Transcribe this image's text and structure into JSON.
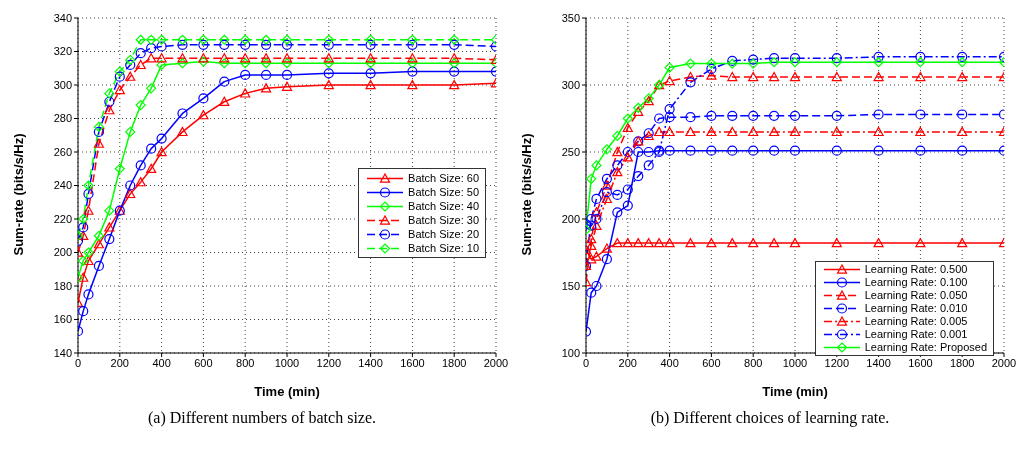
{
  "chart_data": [
    {
      "type": "line",
      "title": "(a) Different numbers of batch size.",
      "xlabel": "Time (min)",
      "ylabel": "Sum-rate (bits/s/Hz)",
      "x": [
        0,
        25,
        50,
        100,
        150,
        200,
        250,
        300,
        350,
        400,
        500,
        600,
        700,
        800,
        900,
        1000,
        1200,
        1400,
        1600,
        1800,
        2000
      ],
      "xlim": [
        0,
        2000
      ],
      "xticks": [
        0,
        200,
        400,
        600,
        800,
        1000,
        1200,
        1400,
        1600,
        1800,
        2000
      ],
      "ylim": [
        140,
        340
      ],
      "yticks": [
        140,
        160,
        180,
        200,
        220,
        240,
        260,
        280,
        300,
        320,
        340
      ],
      "grid": true,
      "legend": "right",
      "series": [
        {
          "name": "Batch Size: 60",
          "color": "#ff0000",
          "marker": "triangle",
          "line_style": "solid",
          "values": [
            170,
            185,
            195,
            205,
            215,
            225,
            235,
            242,
            250,
            260,
            272,
            282,
            290,
            295,
            298,
            299,
            300,
            300,
            300,
            300,
            301
          ]
        },
        {
          "name": "Batch Size: 50",
          "color": "#0000ff",
          "marker": "circle",
          "line_style": "solid",
          "values": [
            153,
            165,
            175,
            192,
            208,
            225,
            240,
            252,
            262,
            268,
            283,
            292,
            302,
            306,
            306,
            306,
            307,
            307,
            308,
            308,
            308
          ]
        },
        {
          "name": "Batch Size: 40",
          "color": "#00ff00",
          "marker": "diamond",
          "line_style": "solid",
          "values": [
            185,
            195,
            200,
            210,
            225,
            250,
            272,
            288,
            298,
            312,
            313,
            314,
            313,
            313,
            313,
            313,
            313,
            313,
            313,
            313,
            313
          ]
        },
        {
          "name": "Batch Size: 30",
          "color": "#ff0000",
          "marker": "triangle",
          "line_style": "dashed",
          "values": [
            200,
            210,
            225,
            265,
            285,
            297,
            305,
            312,
            316,
            316,
            316,
            316,
            316,
            316,
            316,
            316,
            316,
            316,
            316,
            316,
            315
          ]
        },
        {
          "name": "Batch Size: 20",
          "color": "#0000ff",
          "marker": "circle",
          "line_style": "dashed",
          "values": [
            207,
            215,
            235,
            272,
            290,
            305,
            312,
            319,
            322,
            323,
            324,
            324,
            324,
            324,
            324,
            324,
            324,
            324,
            324,
            324,
            323
          ]
        },
        {
          "name": "Batch Size: 10",
          "color": "#00ff00",
          "marker": "diamond",
          "line_style": "dashed",
          "values": [
            210,
            220,
            240,
            275,
            295,
            308,
            315,
            327,
            327,
            327,
            327,
            327,
            327,
            327,
            327,
            327,
            327,
            327,
            327,
            327,
            327
          ]
        }
      ]
    },
    {
      "type": "line",
      "title": "(b) Different choices of learning rate.",
      "xlabel": "Time (min)",
      "ylabel": "Sum-rate (bits/s/Hz)",
      "x": [
        0,
        25,
        50,
        100,
        150,
        200,
        250,
        300,
        350,
        400,
        500,
        600,
        700,
        800,
        900,
        1000,
        1200,
        1400,
        1600,
        1800,
        2000
      ],
      "xlim": [
        0,
        2000
      ],
      "xticks": [
        0,
        200,
        400,
        600,
        800,
        1000,
        1200,
        1400,
        1600,
        1800,
        2000
      ],
      "ylim": [
        100,
        350
      ],
      "yticks": [
        100,
        150,
        200,
        250,
        300,
        350
      ],
      "grid": true,
      "legend": "bottom right",
      "series": [
        {
          "name": "Learning Rate: 0.500",
          "color": "#ff0000",
          "marker": "triangle",
          "line_style": "solid",
          "values": [
            177,
            170,
            172,
            178,
            182,
            182,
            182,
            182,
            182,
            182,
            182,
            182,
            182,
            182,
            182,
            182,
            182,
            182,
            182,
            182,
            182
          ]
        },
        {
          "name": "Learning Rate: 0.100",
          "color": "#0000ff",
          "marker": "circle",
          "line_style": "solid",
          "values": [
            116,
            145,
            150,
            170,
            205,
            210,
            250,
            250,
            251,
            251,
            251,
            251,
            251,
            251,
            251,
            251,
            251,
            251,
            251,
            251,
            251
          ]
        },
        {
          "name": "Learning Rate: 0.050",
          "color": "#ff0000",
          "marker": "triangle",
          "line_style": "dashed",
          "values": [
            153,
            185,
            205,
            225,
            250,
            268,
            280,
            288,
            300,
            303,
            306,
            307,
            306,
            306,
            306,
            306,
            306,
            306,
            306,
            306,
            306
          ]
        },
        {
          "name": "Learning Rate: 0.010",
          "color": "#0000ff",
          "marker": "circle",
          "line_style": "dashed",
          "values": [
            165,
            200,
            215,
            230,
            240,
            250,
            258,
            264,
            275,
            276,
            276,
            277,
            277,
            277,
            277,
            277,
            277,
            278,
            278,
            278,
            278
          ]
        },
        {
          "name": "Learning Rate: 0.005",
          "color": "#ff0000",
          "marker": "triangle",
          "line_style": "dashdot",
          "values": [
            165,
            180,
            195,
            215,
            235,
            246,
            258,
            262,
            265,
            265,
            265,
            265,
            265,
            265,
            265,
            265,
            265,
            265,
            265,
            265,
            265
          ]
        },
        {
          "name": "Learning Rate: 0.001",
          "color": "#0000ff",
          "marker": "circle",
          "line_style": "dashdot",
          "values": [
            196,
            195,
            200,
            220,
            218,
            222,
            232,
            240,
            250,
            282,
            302,
            312,
            318,
            319,
            320,
            320,
            320,
            321,
            321,
            321,
            321
          ]
        },
        {
          "name": "Learning Rate: Proposed",
          "color": "#00ff00",
          "marker": "diamond",
          "line_style": "solid",
          "values": [
            192,
            230,
            240,
            252,
            262,
            275,
            283,
            290,
            300,
            313,
            316,
            316,
            316,
            316,
            317,
            317,
            317,
            317,
            317,
            317,
            317
          ]
        }
      ]
    }
  ]
}
